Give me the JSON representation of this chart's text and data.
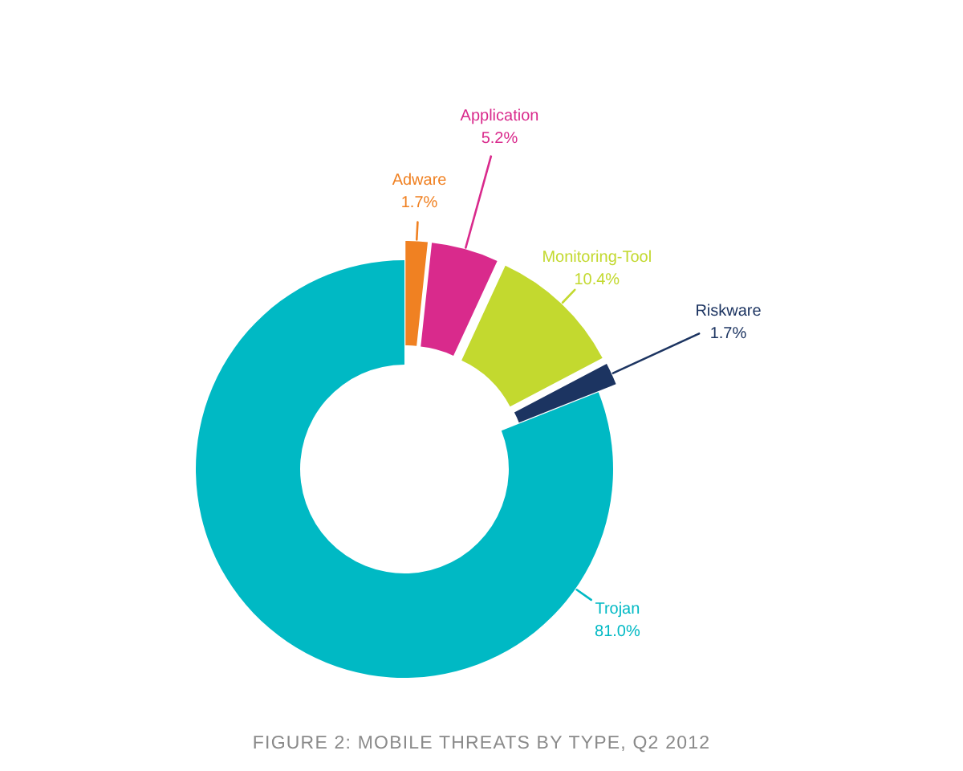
{
  "chart_data": {
    "type": "donut",
    "title": "FIGURE 2: MOBILE THREATS BY TYPE, Q2 2012",
    "categories": [
      "Adware",
      "Application",
      "Monitoring-Tool",
      "Riskware",
      "Trojan"
    ],
    "values": [
      1.7,
      5.2,
      10.4,
      1.7,
      81.0
    ],
    "colors": [
      "#f08122",
      "#d92a8c",
      "#c3d92f",
      "#1c3461",
      "#00b9c4"
    ],
    "value_labels": [
      "1.7%",
      "5.2%",
      "10.4%",
      "1.7%",
      "81.0%"
    ]
  }
}
